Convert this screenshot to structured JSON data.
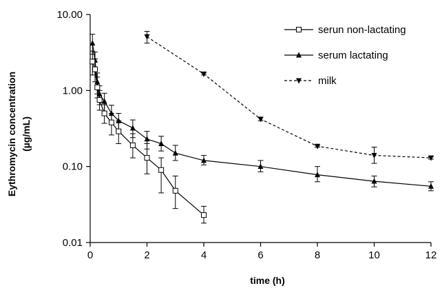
{
  "chart_data": {
    "type": "line",
    "xlabel": "time (h)",
    "ylabel_lines": [
      "Eythromycin concentration",
      "(µg/mL)"
    ],
    "y_scale": "log",
    "xlim": [
      0,
      12
    ],
    "ylim": [
      0.01,
      10
    ],
    "x_ticks": [
      0,
      2,
      4,
      6,
      8,
      10,
      12
    ],
    "x_tick_labels": [
      "0",
      "2",
      "4",
      "6",
      "8",
      "10",
      "12"
    ],
    "y_ticks": [
      0.01,
      0.1,
      1,
      10
    ],
    "y_tick_labels": [
      "0.01",
      "0.10",
      "1.00",
      "10.00"
    ],
    "grid": false,
    "legend_position": "top-right",
    "series": [
      {
        "name": "serun non-lactating",
        "marker": "square-open",
        "line": "solid",
        "color": "#000000",
        "x": [
          0.08,
          0.17,
          0.25,
          0.33,
          0.5,
          0.75,
          1,
          1.5,
          2,
          2.5,
          3,
          4
        ],
        "y": [
          2.4,
          1.9,
          1.1,
          0.75,
          0.5,
          0.38,
          0.29,
          0.19,
          0.13,
          0.09,
          0.048,
          0.023
        ],
        "err_lo": [
          1.6,
          1.3,
          0.8,
          0.55,
          0.37,
          0.26,
          0.2,
          0.13,
          0.08,
          0.045,
          0.028,
          0.018
        ],
        "err_hi": [
          3.3,
          2.6,
          1.5,
          1.0,
          0.65,
          0.5,
          0.4,
          0.27,
          0.2,
          0.13,
          0.075,
          0.03
        ]
      },
      {
        "name": "serum lactating",
        "marker": "triangle-up-filled",
        "line": "solid",
        "color": "#000000",
        "x": [
          0.08,
          0.17,
          0.25,
          0.33,
          0.5,
          0.75,
          1,
          1.5,
          2,
          2.5,
          3,
          4,
          6,
          8,
          10,
          12
        ],
        "y": [
          4.2,
          2.5,
          1.3,
          0.9,
          0.72,
          0.5,
          0.4,
          0.32,
          0.23,
          0.2,
          0.15,
          0.12,
          0.1,
          0.078,
          0.064,
          0.055
        ],
        "err_lo": [
          3.0,
          1.8,
          0.9,
          0.65,
          0.52,
          0.36,
          0.29,
          0.24,
          0.17,
          0.16,
          0.12,
          0.105,
          0.085,
          0.063,
          0.054,
          0.048
        ],
        "err_hi": [
          5.5,
          3.2,
          1.7,
          1.15,
          0.92,
          0.64,
          0.5,
          0.41,
          0.29,
          0.25,
          0.19,
          0.14,
          0.12,
          0.1,
          0.075,
          0.063
        ]
      },
      {
        "name": "milk",
        "marker": "triangle-down-filled",
        "line": "dashed",
        "color": "#000000",
        "x": [
          2,
          4,
          6,
          8,
          10,
          12
        ],
        "y": [
          5.1,
          1.65,
          0.42,
          0.185,
          0.14,
          0.13
        ],
        "err_lo": [
          4.2,
          1.6,
          0.4,
          0.18,
          0.11,
          0.125
        ],
        "err_hi": [
          6.0,
          1.7,
          0.44,
          0.19,
          0.18,
          0.135
        ]
      }
    ]
  }
}
